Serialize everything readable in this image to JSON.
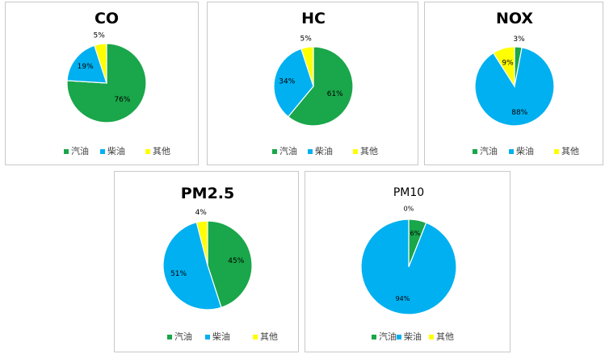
{
  "colors": {
    "gasoline": "#1aa64a",
    "diesel": "#00b0f0",
    "other": "#ffff00"
  },
  "chart_data": [
    {
      "type": "pie",
      "title": "CO",
      "legend": [
        "汽油",
        "柴油",
        "其他"
      ],
      "legend_position": "bottom",
      "values": [
        76,
        19,
        5
      ],
      "labels": [
        "76%",
        "19%",
        "5%"
      ]
    },
    {
      "type": "pie",
      "title": "HC",
      "legend": [
        "汽油",
        "柴油",
        "其他"
      ],
      "legend_position": "bottom",
      "values": [
        61,
        34,
        5
      ],
      "labels": [
        "61%",
        "34%",
        "5%"
      ]
    },
    {
      "type": "pie",
      "title": "NOX",
      "legend": [
        "汽油",
        "柴油",
        "其他"
      ],
      "legend_position": "bottom",
      "values": [
        3,
        88,
        9
      ],
      "labels": [
        "3%",
        "88%",
        "9%"
      ]
    },
    {
      "type": "pie",
      "title": "PM2.5",
      "legend": [
        "汽油",
        "柴油",
        "其他"
      ],
      "legend_position": "bottom",
      "values": [
        45,
        51,
        4
      ],
      "labels": [
        "45%",
        "51%",
        "4%"
      ]
    },
    {
      "type": "pie",
      "title": "PM10",
      "legend": [
        "汽油",
        "柴油",
        "其他"
      ],
      "legend_position": "bottom",
      "values": [
        6,
        94,
        0
      ],
      "labels": [
        "6%",
        "94%",
        "0%"
      ]
    }
  ]
}
